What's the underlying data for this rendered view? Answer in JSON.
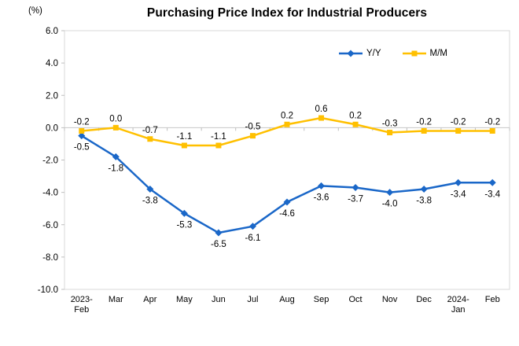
{
  "chart_data": {
    "type": "line",
    "title": "Purchasing Price Index for Industrial Producers",
    "unit_label": "(%)",
    "xlabel": "",
    "ylabel": "(%)",
    "categories": [
      [
        "2023-",
        "Feb"
      ],
      [
        "Mar"
      ],
      [
        "Apr"
      ],
      [
        "May"
      ],
      [
        "Jun"
      ],
      [
        "Jul"
      ],
      [
        "Aug"
      ],
      [
        "Sep"
      ],
      [
        "Oct"
      ],
      [
        "Nov"
      ],
      [
        "Dec"
      ],
      [
        "2024-",
        "Jan"
      ],
      [
        "Feb"
      ]
    ],
    "series": [
      {
        "name": "Y/Y",
        "color": "#1A67C8",
        "marker": "diamond",
        "label_position": "below",
        "values": [
          -0.5,
          -1.8,
          -3.8,
          -5.3,
          -6.5,
          -6.1,
          -4.6,
          -3.6,
          -3.7,
          -4.0,
          -3.8,
          -3.4,
          -3.4
        ]
      },
      {
        "name": "M/M",
        "color": "#FFC000",
        "marker": "square",
        "label_position": "above",
        "values": [
          -0.2,
          0.0,
          -0.7,
          -1.1,
          -1.1,
          -0.5,
          0.2,
          0.6,
          0.2,
          -0.3,
          -0.2,
          -0.2,
          -0.2
        ]
      }
    ],
    "y_axis": {
      "min": -10.0,
      "max": 6.0,
      "step": 2.0,
      "tick_labels": [
        "6.0",
        "4.0",
        "2.0",
        "0.0",
        "-2.0",
        "-4.0",
        "-6.0",
        "-8.0",
        "-10.0"
      ]
    },
    "ylim": [
      -10.0,
      6.0
    ],
    "grid": false,
    "legend_position": "top-right-inside",
    "colors": {
      "plot_border": "#D9D9D9",
      "zero_axis_line": "#C6C6C6",
      "tick_mark": "#BFBFBF",
      "text": "#000000",
      "background": "#FFFFFF"
    }
  }
}
